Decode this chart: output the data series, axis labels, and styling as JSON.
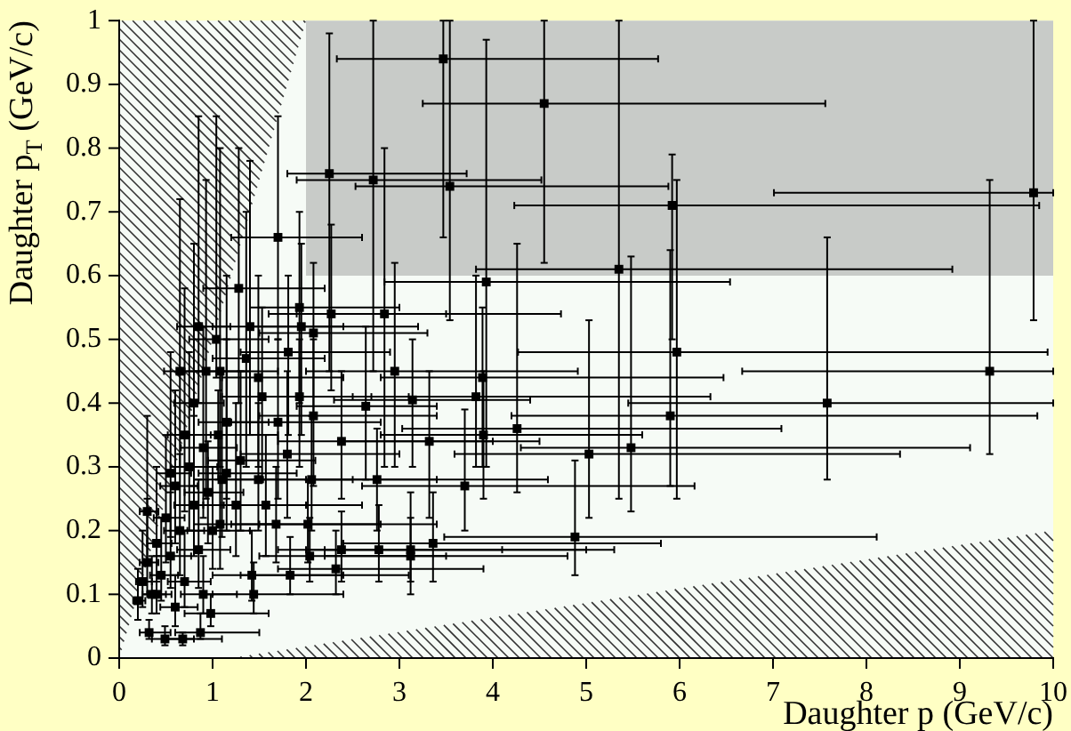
{
  "chart_data": {
    "type": "scatter",
    "xlabel": "Daughter p (GeV/c)",
    "ylabel": "Daughter p$_{T}$ (GeV/c)",
    "xlim": [
      0,
      10
    ],
    "ylim": [
      0,
      1
    ],
    "xticks": [
      0,
      1,
      2,
      3,
      4,
      5,
      6,
      7,
      8,
      9,
      10
    ],
    "yticks": [
      0,
      0.1,
      0.2,
      0.3,
      0.4,
      0.5,
      0.6,
      0.7,
      0.8,
      0.9,
      1
    ],
    "marker": "square",
    "series": [
      {
        "color": "#000000",
        "x": [
          3.47,
          4.55,
          2.72,
          3.54,
          5.92,
          9.79,
          5.35,
          3.93,
          2.84,
          5.97,
          2.25,
          9.32,
          7.58,
          5.9,
          2.95,
          3.89,
          2.64,
          3.14,
          3.82,
          4.26,
          3.9,
          3.32,
          5.48,
          5.03,
          2.76,
          3.7,
          4.88,
          3.36,
          2.78,
          3.12,
          3.12,
          1.7,
          1.28,
          1.93,
          2.27,
          1.4,
          1.95,
          2.08,
          1.04,
          1.81,
          1.36,
          0.93,
          1.08,
          1.49,
          1.53,
          1.93,
          1.7,
          2.08,
          1.06,
          2.38,
          1.8,
          1.49,
          2.06,
          1.3,
          1.15,
          1.08,
          1.25,
          1.57,
          1.68,
          2.02,
          2.38,
          2.04,
          2.32,
          1.83,
          1.42,
          1.44,
          0.98,
          0.87,
          0.32,
          0.49,
          0.68,
          0.25,
          0.3,
          0.35,
          0.4,
          0.45,
          0.5,
          0.55,
          0.6,
          0.65,
          0.7,
          0.75,
          0.8,
          0.85,
          0.9,
          0.95,
          1.0,
          1.1,
          0.3,
          0.4,
          0.55,
          0.7,
          0.2,
          0.6,
          0.9,
          1.15,
          0.8,
          0.65,
          0.85
        ],
        "values": [
          0.94,
          0.87,
          0.75,
          0.74,
          0.71,
          0.73,
          0.61,
          0.59,
          0.54,
          0.48,
          0.76,
          0.45,
          0.4,
          0.38,
          0.45,
          0.44,
          0.395,
          0.405,
          0.41,
          0.36,
          0.35,
          0.34,
          0.33,
          0.32,
          0.28,
          0.27,
          0.19,
          0.18,
          0.17,
          0.17,
          0.16,
          0.66,
          0.58,
          0.55,
          0.54,
          0.52,
          0.52,
          0.51,
          0.5,
          0.48,
          0.47,
          0.45,
          0.45,
          0.44,
          0.41,
          0.41,
          0.37,
          0.38,
          0.35,
          0.34,
          0.32,
          0.28,
          0.28,
          0.31,
          0.29,
          0.21,
          0.24,
          0.24,
          0.21,
          0.21,
          0.17,
          0.16,
          0.14,
          0.13,
          0.13,
          0.1,
          0.07,
          0.04,
          0.04,
          0.03,
          0.03,
          0.12,
          0.15,
          0.1,
          0.18,
          0.13,
          0.22,
          0.16,
          0.27,
          0.2,
          0.12,
          0.3,
          0.24,
          0.17,
          0.33,
          0.26,
          0.2,
          0.28,
          0.23,
          0.1,
          0.29,
          0.35,
          0.09,
          0.08,
          0.1,
          0.37,
          0.4,
          0.45,
          0.52
        ],
        "xerrors": [
          [
            2.33,
            5.77
          ],
          [
            3.25,
            7.56
          ],
          [
            1.9,
            4.52
          ],
          [
            2.53,
            5.88
          ],
          [
            4.23,
            9.85
          ],
          [
            7.01,
            10
          ],
          [
            3.82,
            8.92
          ],
          [
            2.84,
            6.54
          ],
          [
            1.9,
            4.73
          ],
          [
            4.27,
            9.94
          ],
          [
            1.8,
            3.72
          ],
          [
            6.67,
            10
          ],
          [
            5.45,
            10
          ],
          [
            4.2,
            9.83
          ],
          [
            2.0,
            4.91
          ],
          [
            2.8,
            6.47
          ],
          [
            1.9,
            3.4
          ],
          [
            2.3,
            4.4
          ],
          [
            2.7,
            6.33
          ],
          [
            3.03,
            7.09
          ],
          [
            2.8,
            5.6
          ],
          [
            2.4,
            4.5
          ],
          [
            4.3,
            9.11
          ],
          [
            3.59,
            8.36
          ],
          [
            2.0,
            4.59
          ],
          [
            2.6,
            6.16
          ],
          [
            3.48,
            8.11
          ],
          [
            2.4,
            5.8
          ],
          [
            2.0,
            5.0
          ],
          [
            2.2,
            5.3
          ],
          [
            2.2,
            4.8
          ],
          [
            1.2,
            2.6
          ],
          [
            0.9,
            2.2
          ],
          [
            1.4,
            3.0
          ],
          [
            1.6,
            3.5
          ],
          [
            1.0,
            2.4
          ],
          [
            1.4,
            3.2
          ],
          [
            1.5,
            3.3
          ],
          [
            0.75,
            1.6
          ],
          [
            1.3,
            2.9
          ],
          [
            1.0,
            2.2
          ],
          [
            0.7,
            1.4
          ],
          [
            0.8,
            1.7
          ],
          [
            1.1,
            2.4
          ],
          [
            1.1,
            2.5
          ],
          [
            1.4,
            3.1
          ],
          [
            1.2,
            2.8
          ],
          [
            1.5,
            3.4
          ],
          [
            0.75,
            1.7
          ],
          [
            1.7,
            4.0
          ],
          [
            1.3,
            3.0
          ],
          [
            1.1,
            2.5
          ],
          [
            1.5,
            3.4
          ],
          [
            0.95,
            2.1
          ],
          [
            0.85,
            1.9
          ],
          [
            0.8,
            1.7
          ],
          [
            0.9,
            2.0
          ],
          [
            1.1,
            2.6
          ],
          [
            1.2,
            2.8
          ],
          [
            1.5,
            3.4
          ],
          [
            1.7,
            4.1
          ],
          [
            1.5,
            3.5
          ],
          [
            1.7,
            3.9
          ],
          [
            1.3,
            3.1
          ],
          [
            1.0,
            2.4
          ],
          [
            1.0,
            2.4
          ],
          [
            0.7,
            1.6
          ],
          [
            0.6,
            1.5
          ],
          [
            0.22,
            0.55
          ],
          [
            0.35,
            0.8
          ],
          [
            0.5,
            1.1
          ],
          [
            0.18,
            0.35
          ],
          [
            0.22,
            0.42
          ],
          [
            0.25,
            0.5
          ],
          [
            0.3,
            0.56
          ],
          [
            0.33,
            0.63
          ],
          [
            0.37,
            0.7
          ],
          [
            0.4,
            0.77
          ],
          [
            0.44,
            0.84
          ],
          [
            0.48,
            0.91
          ],
          [
            0.52,
            0.98
          ],
          [
            0.55,
            1.05
          ],
          [
            0.59,
            1.12
          ],
          [
            0.62,
            1.19
          ],
          [
            0.66,
            1.26
          ],
          [
            0.7,
            1.33
          ],
          [
            0.73,
            1.4
          ],
          [
            0.8,
            1.54
          ],
          [
            0.22,
            0.42
          ],
          [
            0.3,
            0.56
          ],
          [
            0.4,
            0.77
          ],
          [
            0.52,
            0.98
          ],
          [
            0.15,
            0.28
          ],
          [
            0.44,
            0.84
          ],
          [
            0.66,
            1.26
          ],
          [
            0.85,
            1.6
          ],
          [
            0.59,
            1.12
          ],
          [
            0.48,
            0.91
          ],
          [
            0.62,
            1.19
          ]
        ],
        "errors": [
          [
            0.66,
            1
          ],
          [
            0.62,
            1
          ],
          [
            0.45,
            1
          ],
          [
            0.53,
            1
          ],
          [
            0.5,
            0.79
          ],
          [
            0.53,
            1
          ],
          [
            0.25,
            1
          ],
          [
            0.3,
            0.97
          ],
          [
            0.3,
            0.8
          ],
          [
            0.25,
            0.75
          ],
          [
            0.45,
            0.98
          ],
          [
            0.32,
            0.75
          ],
          [
            0.28,
            0.66
          ],
          [
            0.27,
            0.64
          ],
          [
            0.3,
            0.62
          ],
          [
            0.3,
            0.55
          ],
          [
            0.28,
            0.52
          ],
          [
            0.3,
            0.5
          ],
          [
            0.3,
            0.6
          ],
          [
            0.26,
            0.65
          ],
          [
            0.25,
            0.45
          ],
          [
            0.22,
            0.45
          ],
          [
            0.23,
            0.63
          ],
          [
            0.22,
            0.53
          ],
          [
            0.2,
            0.36
          ],
          [
            0.2,
            0.39
          ],
          [
            0.13,
            0.31
          ],
          [
            0.12,
            0.26
          ],
          [
            0.12,
            0.24
          ],
          [
            0.12,
            0.26
          ],
          [
            0.1,
            0.22
          ],
          [
            0.5,
            0.85
          ],
          [
            0.4,
            0.8
          ],
          [
            0.4,
            0.7
          ],
          [
            0.42,
            0.68
          ],
          [
            0.35,
            0.78
          ],
          [
            0.35,
            0.65
          ],
          [
            0.38,
            0.62
          ],
          [
            0.44,
            0.85
          ],
          [
            0.35,
            0.6
          ],
          [
            0.3,
            0.7
          ],
          [
            0.25,
            0.75
          ],
          [
            0.3,
            0.8
          ],
          [
            0.3,
            0.6
          ],
          [
            0.28,
            0.55
          ],
          [
            0.3,
            0.5
          ],
          [
            0.25,
            0.5
          ],
          [
            0.27,
            0.5
          ],
          [
            0.28,
            0.42
          ],
          [
            0.25,
            0.45
          ],
          [
            0.22,
            0.45
          ],
          [
            0.2,
            0.4
          ],
          [
            0.2,
            0.38
          ],
          [
            0.2,
            0.45
          ],
          [
            0.2,
            0.5
          ],
          [
            0.14,
            0.35
          ],
          [
            0.16,
            0.4
          ],
          [
            0.16,
            0.35
          ],
          [
            0.15,
            0.3
          ],
          [
            0.15,
            0.28
          ],
          [
            0.12,
            0.23
          ],
          [
            0.12,
            0.22
          ],
          [
            0.1,
            0.2
          ],
          [
            0.1,
            0.19
          ],
          [
            0.09,
            0.2
          ],
          [
            0.07,
            0.15
          ],
          [
            0.05,
            0.1
          ],
          [
            0.03,
            0.07
          ],
          [
            0.03,
            0.06
          ],
          [
            0.02,
            0.05
          ],
          [
            0.02,
            0.04
          ],
          [
            0.08,
            0.2
          ],
          [
            0.1,
            0.25
          ],
          [
            0.07,
            0.16
          ],
          [
            0.12,
            0.3
          ],
          [
            0.09,
            0.22
          ],
          [
            0.15,
            0.35
          ],
          [
            0.11,
            0.26
          ],
          [
            0.18,
            0.42
          ],
          [
            0.13,
            0.32
          ],
          [
            0.08,
            0.2
          ],
          [
            0.2,
            0.48
          ],
          [
            0.16,
            0.38
          ],
          [
            0.11,
            0.28
          ],
          [
            0.22,
            0.52
          ],
          [
            0.18,
            0.34
          ],
          [
            0.14,
            0.3
          ],
          [
            0.19,
            0.45
          ],
          [
            0.15,
            0.38
          ],
          [
            0.07,
            0.16
          ],
          [
            0.19,
            0.48
          ],
          [
            0.23,
            0.58
          ],
          [
            0.06,
            0.14
          ],
          [
            0.05,
            0.13
          ],
          [
            0.07,
            0.16
          ],
          [
            0.25,
            0.6
          ],
          [
            0.27,
            0.65
          ],
          [
            0.3,
            0.72
          ],
          [
            0.4,
            0.85
          ]
        ]
      }
    ]
  }
}
